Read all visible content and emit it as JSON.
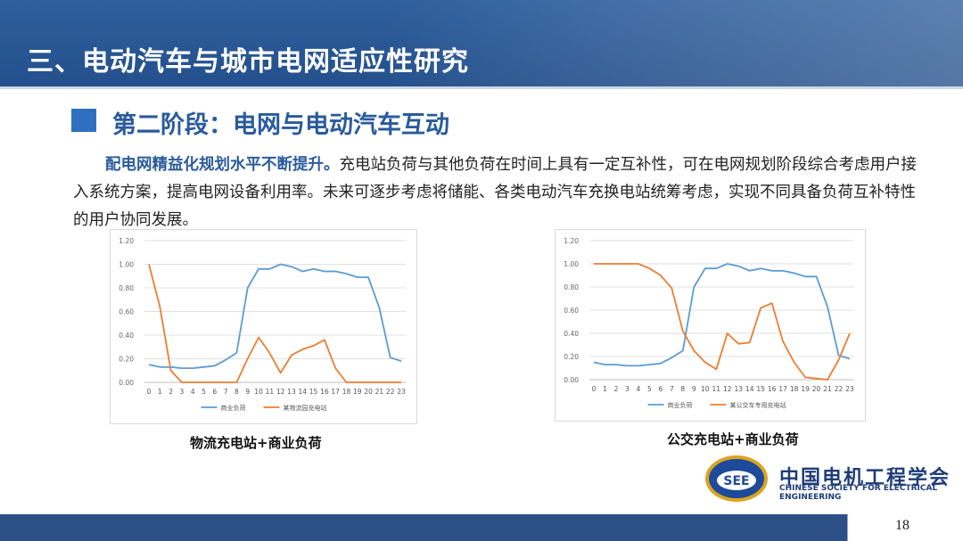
{
  "header": {
    "title": "三、电动汽车与城市电网适应性研究"
  },
  "section": {
    "subtitle": "第二阶段：电网与电动汽车互动",
    "highlight": "配电网精益化规划水平不断提升。",
    "body": "充电站负荷与其他负荷在时间上具有一定互补性，可在电网规划阶段综合考虑用户接入系统方案，提高电网设备利用率。未来可逐步考虑将储能、各类电动汽车充换电站统筹考虑，实现不同具备负荷互补特性的用户协同发展。"
  },
  "charts": {
    "left_caption": "物流充电站+商业负荷",
    "right_caption": "公交充电站+商业负荷"
  },
  "footer": {
    "org_cn": "中国电机工程学会",
    "org_en": "CHINESE SOCIETY FOR ELECTRICAL ENGINEERING",
    "logo_text": "SEE",
    "page": "18"
  },
  "colors": {
    "blue_series": "#5b9bd5",
    "orange_series": "#ed7d31",
    "header": "#2a5b9d"
  },
  "chart_data": [
    {
      "type": "line",
      "x": [
        0,
        1,
        2,
        3,
        4,
        5,
        6,
        7,
        8,
        9,
        10,
        11,
        12,
        13,
        14,
        15,
        16,
        17,
        18,
        19,
        20,
        21,
        22,
        23
      ],
      "ylim": [
        0,
        1.2
      ],
      "yticks": [
        "0.00",
        "0.20",
        "0.40",
        "0.60",
        "0.80",
        "1.00",
        "1.20"
      ],
      "grid": true,
      "legend": "bottom",
      "series": [
        {
          "name": "商业负荷",
          "color": "#5b9bd5",
          "values": [
            0.15,
            0.13,
            0.13,
            0.12,
            0.12,
            0.13,
            0.14,
            0.19,
            0.25,
            0.8,
            0.96,
            0.96,
            1.0,
            0.98,
            0.94,
            0.96,
            0.94,
            0.94,
            0.92,
            0.89,
            0.89,
            0.63,
            0.21,
            0.18
          ]
        },
        {
          "name": "某物流园充电站",
          "color": "#ed7d31",
          "values": [
            1.0,
            0.64,
            0.1,
            0.0,
            0.0,
            0.0,
            0.0,
            0.0,
            0.0,
            0.2,
            0.38,
            0.25,
            0.08,
            0.23,
            0.28,
            0.31,
            0.36,
            0.12,
            0.0,
            0.0,
            0.0,
            0.0,
            0.0,
            0.0
          ]
        }
      ]
    },
    {
      "type": "line",
      "x": [
        0,
        1,
        2,
        3,
        4,
        5,
        6,
        7,
        8,
        9,
        10,
        11,
        12,
        13,
        14,
        15,
        16,
        17,
        18,
        19,
        20,
        21,
        22,
        23
      ],
      "ylim": [
        0,
        1.2
      ],
      "yticks": [
        "0.00",
        "0.20",
        "0.40",
        "0.60",
        "0.80",
        "1.00",
        "1.20"
      ],
      "grid": true,
      "legend": "bottom",
      "series": [
        {
          "name": "商业负荷",
          "color": "#5b9bd5",
          "values": [
            0.15,
            0.13,
            0.13,
            0.12,
            0.12,
            0.13,
            0.14,
            0.19,
            0.25,
            0.8,
            0.96,
            0.96,
            1.0,
            0.98,
            0.94,
            0.96,
            0.94,
            0.94,
            0.92,
            0.89,
            0.89,
            0.63,
            0.21,
            0.18
          ]
        },
        {
          "name": "某公交车专用充电站",
          "color": "#ed7d31",
          "values": [
            1.0,
            1.0,
            1.0,
            1.0,
            1.0,
            0.96,
            0.9,
            0.79,
            0.42,
            0.25,
            0.15,
            0.09,
            0.4,
            0.31,
            0.32,
            0.62,
            0.66,
            0.33,
            0.15,
            0.02,
            0.01,
            0.0,
            0.17,
            0.4
          ]
        }
      ]
    }
  ]
}
